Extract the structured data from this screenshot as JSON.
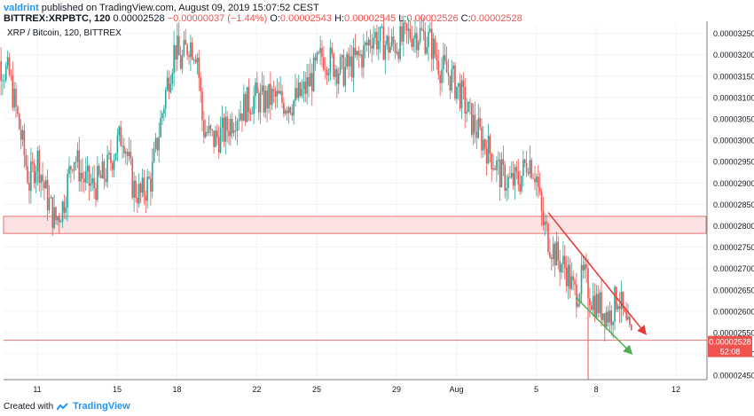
{
  "header": {
    "user": "valdrint",
    "published": "published on TradingView.com, August 09, 2019 15:07:52 CEST",
    "symbol": "BITTREX:XRPBTC, 120",
    "close": "0.00002528",
    "change": "−0.00000037 (−1.44%)",
    "o_label": "O:",
    "o_value": "0.00002543",
    "h_label": "H:",
    "h_value": "0.00002545",
    "l_label": "L:",
    "l_value": "0.00002526",
    "c_label": "C:",
    "c_value": "0.00002528"
  },
  "legend": "XRP / Bitcoin, 120, BITTREX",
  "footer": {
    "created_with": "Created with",
    "brand": "TradingView"
  },
  "colors": {
    "up": "#26a69a",
    "down": "#ef5350",
    "zone_fill": "#fbe3e3",
    "zone_stroke": "#e57373",
    "red_line": "#e53935",
    "green_line": "#4caf50",
    "axis_text": "#131722",
    "grid": "#f0f3fa",
    "price_label": "#ef5350"
  },
  "chart_data": {
    "type": "candlestick",
    "title": "XRP / Bitcoin, 120, BITTREX",
    "ylim": [
      2.44e-05,
      3.27e-05
    ],
    "y_ticks": [
      "0.00003250",
      "0.00003200",
      "0.00003150",
      "0.00003100",
      "0.00003050",
      "0.00003000",
      "0.00002950",
      "0.00002900",
      "0.00002850",
      "0.00002800",
      "0.00002750",
      "0.00002700",
      "0.00002650",
      "0.00002600",
      "0.00002550",
      "0.00002500",
      "0.00002450"
    ],
    "x_ticks": [
      {
        "label": "11",
        "day": 11
      },
      {
        "label": "15",
        "day": 15
      },
      {
        "label": "18",
        "day": 18
      },
      {
        "label": "22",
        "day": 22
      },
      {
        "label": "25",
        "day": 25
      },
      {
        "label": "29",
        "day": 29
      },
      {
        "label": "Aug",
        "day": 32
      },
      {
        "label": "5",
        "day": 36
      },
      {
        "label": "8",
        "day": 39
      },
      {
        "label": "12",
        "day": 43
      }
    ],
    "last_price": {
      "value": 2.528e-05,
      "label": "0.00002528",
      "countdown": "52:08"
    },
    "zone": {
      "top": 2.822e-05,
      "bottom": 2.782e-05
    },
    "support_line": 2.532e-05,
    "trend_lines": [
      {
        "color": "red",
        "from": {
          "day": 36.6,
          "value": 2.831e-05
        },
        "to": {
          "day": 41.5,
          "value": 2.546e-05
        }
      },
      {
        "color": "green",
        "from": {
          "day": 38.0,
          "value": 2.632e-05
        },
        "to": {
          "day": 40.8,
          "value": 2.5e-05
        }
      }
    ],
    "path": [
      [
        8.6,
        3.2e-05
      ],
      [
        9.1,
        3.18e-05
      ],
      [
        9.6,
        3.15e-05
      ],
      [
        10.1,
        3.03e-05
      ],
      [
        10.6,
        2.9e-05
      ],
      [
        11.0,
        2.96e-05
      ],
      [
        11.4,
        2.88e-05
      ],
      [
        11.9,
        2.81e-05
      ],
      [
        12.3,
        2.85e-05
      ],
      [
        12.8,
        2.97e-05
      ],
      [
        13.3,
        2.91e-05
      ],
      [
        13.8,
        2.89e-05
      ],
      [
        14.4,
        2.92e-05
      ],
      [
        14.9,
        2.98e-05
      ],
      [
        15.3,
        3.02e-05
      ],
      [
        15.8,
        2.89e-05
      ],
      [
        16.2,
        2.87e-05
      ],
      [
        16.7,
        2.91e-05
      ],
      [
        17.1,
        3.02e-05
      ],
      [
        17.5,
        3.13e-05
      ],
      [
        17.9,
        3.22e-05
      ],
      [
        18.2,
        3.18e-05
      ],
      [
        18.6,
        3.23e-05
      ],
      [
        19.0,
        3.21e-05
      ],
      [
        19.3,
        3.03e-05
      ],
      [
        19.8,
        3e-05
      ],
      [
        20.4,
        3.02e-05
      ],
      [
        20.9,
        3.06e-05
      ],
      [
        21.4,
        3.08e-05
      ],
      [
        21.9,
        3.1e-05
      ],
      [
        22.3,
        3.09e-05
      ],
      [
        22.8,
        3.1e-05
      ],
      [
        23.3,
        3.09e-05
      ],
      [
        23.8,
        3.09e-05
      ],
      [
        24.3,
        3.11e-05
      ],
      [
        24.8,
        3.15e-05
      ],
      [
        25.3,
        3.2e-05
      ],
      [
        25.8,
        3.18e-05
      ],
      [
        26.3,
        3.16e-05
      ],
      [
        26.8,
        3.18e-05
      ],
      [
        27.3,
        3.2e-05
      ],
      [
        27.8,
        3.25e-05
      ],
      [
        28.2,
        3.23e-05
      ],
      [
        28.7,
        3.22e-05
      ],
      [
        29.2,
        3.23e-05
      ],
      [
        29.7,
        3.25e-05
      ],
      [
        30.2,
        3.25e-05
      ],
      [
        30.7,
        3.23e-05
      ],
      [
        31.2,
        3.17e-05
      ],
      [
        31.7,
        3.15e-05
      ],
      [
        32.2,
        3.11e-05
      ],
      [
        32.7,
        3.05e-05
      ],
      [
        33.2,
        3.01e-05
      ],
      [
        33.7,
        2.97e-05
      ],
      [
        34.2,
        2.92e-05
      ],
      [
        34.7,
        2.9e-05
      ],
      [
        35.2,
        2.91e-05
      ],
      [
        35.6,
        2.96e-05
      ],
      [
        36.0,
        2.92e-05
      ],
      [
        36.3,
        2.81e-05
      ],
      [
        36.7,
        2.76e-05
      ],
      [
        37.1,
        2.72e-05
      ],
      [
        37.5,
        2.7e-05
      ],
      [
        37.9,
        2.64e-05
      ],
      [
        38.4,
        2.68e-05
      ],
      [
        38.8,
        2.63e-05
      ],
      [
        39.2,
        2.61e-05
      ],
      [
        39.7,
        2.59e-05
      ],
      [
        40.1,
        2.64e-05
      ],
      [
        40.5,
        2.56e-05
      ],
      [
        40.8,
        2.53e-05
      ]
    ]
  }
}
